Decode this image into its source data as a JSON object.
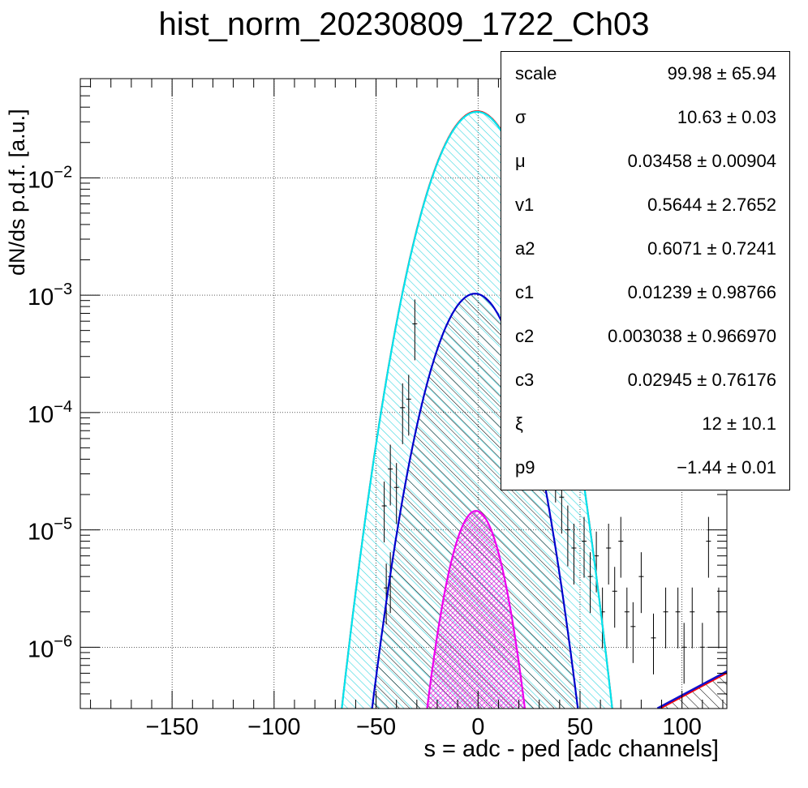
{
  "chart_data": {
    "type": "line",
    "title": "hist_norm_20230809_1722_Ch03",
    "xlabel": "s = adc - ped [adc channels]",
    "ylabel": "dN/ds p.d.f. [a.u.]",
    "xlim": [
      -195,
      122
    ],
    "ylim": [
      3e-07,
      0.07
    ],
    "yscale": "log",
    "grid": true,
    "x_ticks": [
      "−150",
      "−100",
      "−50",
      "0",
      "50",
      "100"
    ],
    "y_ticks": [
      {
        "base": "10",
        "exp": "−2"
      },
      {
        "base": "10",
        "exp": "−3"
      },
      {
        "base": "10",
        "exp": "−4"
      },
      {
        "base": "10",
        "exp": "−5"
      },
      {
        "base": "10",
        "exp": "−6"
      }
    ],
    "series": [
      {
        "kind": "total_fit",
        "color": "#ff0000",
        "mu": -0.5,
        "sigma": 13.7,
        "peak": 0.037,
        "note_tail_from": 88
      },
      {
        "kind": "component_0",
        "color": "#00e5ee",
        "fill": "cyan_hatch",
        "mu": -0.5,
        "sigma": 13.7,
        "peak": 0.0365
      },
      {
        "kind": "component_1",
        "color": "#0000cc",
        "fill": "black_hatch",
        "mu": -1.5,
        "sigma": 12.5,
        "peak": 0.00103
      },
      {
        "kind": "component_2",
        "color": "#ee00ee",
        "fill": "magenta_hatch",
        "mu": -1,
        "sigma": 8.6,
        "peak": 1.45e-05
      },
      {
        "kind": "tail_line",
        "color": "#1010cc",
        "x": [
          88,
          122
        ],
        "y": [
          3e-07,
          6.2e-07
        ]
      }
    ],
    "scatter_points": [
      {
        "x": -46,
        "y": 1.6e-05
      },
      {
        "x": -43,
        "y": 3.3e-05
      },
      {
        "x": -40,
        "y": 2.3e-05
      },
      {
        "x": -37,
        "y": 0.00011
      },
      {
        "x": -34,
        "y": 0.00013
      },
      {
        "x": -31,
        "y": 0.00057
      },
      {
        "x": -43,
        "y": 4e-06
      },
      {
        "x": -45,
        "y": 3.2e-06
      },
      {
        "x": 38,
        "y": 3.5e-05
      },
      {
        "x": 41,
        "y": 1.9e-05
      },
      {
        "x": 44,
        "y": 1e-05
      },
      {
        "x": 47,
        "y": 7e-06
      },
      {
        "x": 52,
        "y": 8e-06
      },
      {
        "x": 55,
        "y": 4e-06
      },
      {
        "x": 58,
        "y": 6e-06
      },
      {
        "x": 61,
        "y": 2e-06
      },
      {
        "x": 64,
        "y": 7e-06
      },
      {
        "x": 67,
        "y": 3e-06
      },
      {
        "x": 70,
        "y": 8e-06
      },
      {
        "x": 73,
        "y": 2e-06
      },
      {
        "x": 76,
        "y": 1.5e-06
      },
      {
        "x": 80,
        "y": 4e-06
      },
      {
        "x": 86,
        "y": 1.2e-06
      },
      {
        "x": 92,
        "y": 2e-06
      },
      {
        "x": 98,
        "y": 2e-06
      },
      {
        "x": 101,
        "y": 1e-06
      },
      {
        "x": 105,
        "y": 2e-06
      },
      {
        "x": 110,
        "y": 1e-06
      },
      {
        "x": 113,
        "y": 8e-06
      },
      {
        "x": 118,
        "y": 2e-06
      }
    ]
  },
  "stats": [
    {
      "name": "scale",
      "value": "99.98 ± 65.94"
    },
    {
      "name": "σ",
      "value": "10.63 ± 0.03"
    },
    {
      "name": "μ",
      "value": "0.03458 ± 0.00904"
    },
    {
      "name": "v1",
      "value": "0.5644 ± 2.7652"
    },
    {
      "name": "a2",
      "value": "0.6071 ± 0.7241"
    },
    {
      "name": "c1",
      "value": "0.01239 ± 0.98766"
    },
    {
      "name": "c2",
      "value": "0.003038 ± 0.966970"
    },
    {
      "name": "c3",
      "value": "0.02945 ± 0.76176"
    },
    {
      "name": "ξ",
      "value": "12 ± 10.1"
    },
    {
      "name": "p9",
      "value": "−1.44 ± 0.01"
    }
  ]
}
